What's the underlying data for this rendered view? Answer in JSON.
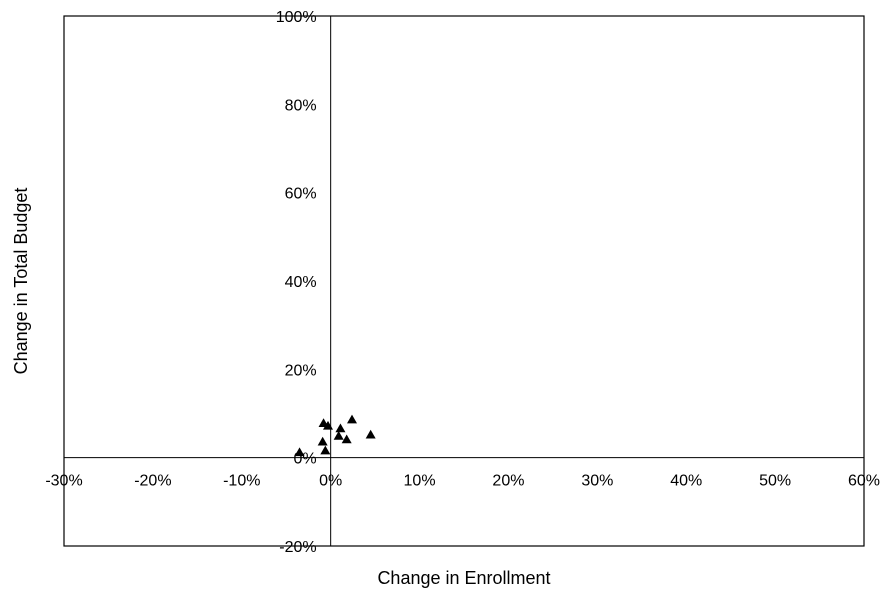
{
  "chart_data": {
    "type": "scatter",
    "title": "",
    "xlabel": "Change in Enrollment",
    "ylabel": "Change in Total Budget",
    "xlim": [
      -30,
      60
    ],
    "ylim": [
      -20,
      100
    ],
    "x_ticks": [
      -30,
      -20,
      -10,
      0,
      10,
      20,
      30,
      40,
      50,
      60
    ],
    "y_ticks": [
      -20,
      0,
      20,
      40,
      60,
      80,
      100
    ],
    "x_tick_labels": [
      "-30%",
      "-20%",
      "-10%",
      "0%",
      "10%",
      "20%",
      "30%",
      "40%",
      "50%",
      "60%"
    ],
    "y_tick_labels": [
      "-20%",
      "0%",
      "20%",
      "40%",
      "60%",
      "80%",
      "100%"
    ],
    "grid": false,
    "legend": "none",
    "marker": "triangle",
    "marker_color": "#000000",
    "series": [
      {
        "points": [
          {
            "x": -0.8,
            "y": 7.8
          },
          {
            "x": -0.3,
            "y": 7.2
          },
          {
            "x": -0.9,
            "y": 3.6
          },
          {
            "x": -0.6,
            "y": 1.6
          },
          {
            "x": -3.5,
            "y": 1.2
          },
          {
            "x": 1.1,
            "y": 6.6
          },
          {
            "x": 0.9,
            "y": 4.9
          },
          {
            "x": 1.8,
            "y": 4.1
          },
          {
            "x": 2.4,
            "y": 8.6
          },
          {
            "x": 4.5,
            "y": 5.2
          }
        ]
      }
    ]
  }
}
